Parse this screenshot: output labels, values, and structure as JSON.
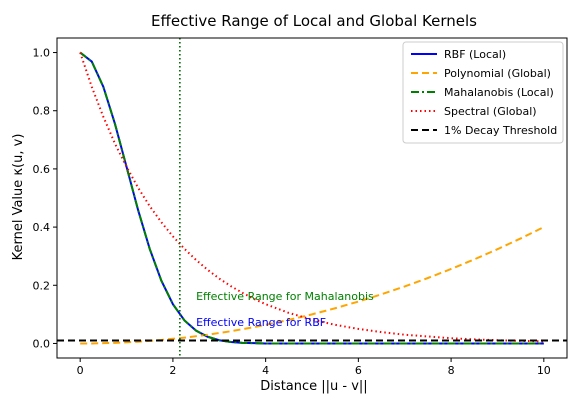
{
  "chart_data": {
    "type": "line",
    "title": "Effective Range of Local and Global Kernels",
    "xlabel": "Distance ||u - v||",
    "ylabel": "Kernel Value κ(u, v)",
    "xlim": [
      -0.5,
      10.5
    ],
    "ylim": [
      -0.05,
      1.05
    ],
    "xticks": [
      "0",
      "2",
      "4",
      "6",
      "8",
      "10"
    ],
    "xtick_values": [
      0,
      2,
      4,
      6,
      8,
      10
    ],
    "yticks": [
      "0.0",
      "0.2",
      "0.4",
      "0.6",
      "0.8",
      "1.0"
    ],
    "ytick_values": [
      0.0,
      0.2,
      0.4,
      0.6,
      0.8,
      1.0
    ],
    "grid": false,
    "legend_position": "top-right",
    "x": [
      0,
      0.25,
      0.5,
      0.75,
      1.0,
      1.25,
      1.5,
      1.75,
      2.0,
      2.25,
      2.5,
      2.75,
      3.0,
      3.25,
      3.5,
      3.75,
      4.0,
      4.5,
      5.0,
      5.5,
      6.0,
      6.5,
      7.0,
      7.5,
      8.0,
      8.5,
      9.0,
      9.5,
      10.0
    ],
    "series": [
      {
        "name": "RBF (Local)",
        "color": "#0000ff",
        "style": "solid",
        "values": [
          1.0,
          0.969,
          0.882,
          0.755,
          0.607,
          0.458,
          0.325,
          0.216,
          0.135,
          0.079,
          0.044,
          0.023,
          0.011,
          0.005,
          0.002,
          0.001,
          0.0,
          0.0,
          0.0,
          0.0,
          0.0,
          0.0,
          0.0,
          0.0,
          0.0,
          0.0,
          0.0,
          0.0,
          0.0
        ]
      },
      {
        "name": "Polynomial (Global)",
        "color": "#ffa500",
        "style": "dashed",
        "values": [
          0.0,
          0.0,
          0.001,
          0.002,
          0.004,
          0.006,
          0.009,
          0.012,
          0.016,
          0.02,
          0.025,
          0.03,
          0.036,
          0.042,
          0.049,
          0.056,
          0.064,
          0.081,
          0.1,
          0.121,
          0.144,
          0.169,
          0.196,
          0.225,
          0.256,
          0.289,
          0.324,
          0.361,
          0.4
        ]
      },
      {
        "name": "Mahalanobis (Local)",
        "color": "#008000",
        "style": "dashdot",
        "values": [
          1.0,
          0.969,
          0.882,
          0.755,
          0.607,
          0.458,
          0.325,
          0.216,
          0.135,
          0.079,
          0.044,
          0.023,
          0.011,
          0.005,
          0.002,
          0.001,
          0.0,
          0.0,
          0.0,
          0.0,
          0.0,
          0.0,
          0.0,
          0.0,
          0.0,
          0.0,
          0.0,
          0.0,
          0.0
        ]
      },
      {
        "name": "Spectral (Global)",
        "color": "#ff0000",
        "style": "dotted",
        "values": [
          1.0,
          0.882,
          0.779,
          0.687,
          0.607,
          0.535,
          0.472,
          0.417,
          0.368,
          0.325,
          0.287,
          0.253,
          0.223,
          0.197,
          0.174,
          0.153,
          0.135,
          0.105,
          0.082,
          0.064,
          0.05,
          0.039,
          0.03,
          0.024,
          0.018,
          0.014,
          0.011,
          0.009,
          0.007
        ]
      }
    ],
    "threshold": {
      "name": "1% Decay Threshold",
      "y": 0.01,
      "color": "#000000"
    },
    "vertical_line": {
      "x": 2.15,
      "color": "#006400"
    },
    "annotations": [
      {
        "text": "Effective Range for Mahalanobis",
        "x": 2.5,
        "y": 0.15,
        "color": "#008000"
      },
      {
        "text": "Effective Range for RBF",
        "x": 2.5,
        "y": 0.06,
        "color": "#0000ff"
      }
    ]
  }
}
